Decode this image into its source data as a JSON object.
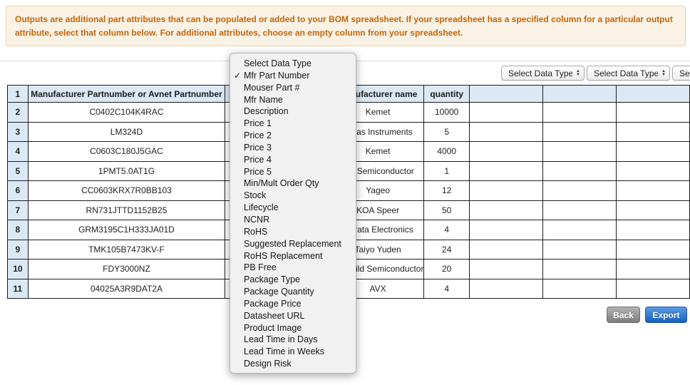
{
  "banner": {
    "text": "Outputs are additional part attributes that can be populated or added to your BOM spreadsheet. If your spreadsheet has a specified column for a particular output attribute, select that column below. For additional attributes, choose an empty column from your spreadsheet."
  },
  "column_selectors": {
    "placeholder": "Select Data Type",
    "visible_count": 3
  },
  "dropdown": {
    "checked_item": "Mfr Part Number",
    "checkmark_glyph": "✓",
    "items": [
      "Select Data Type",
      "Mfr Part Number",
      "Mouser Part #",
      "Mfr Name",
      "Description",
      "Price 1",
      "Price 2",
      "Price 3",
      "Price 4",
      "Price 5",
      "Min/Mult Order Qty",
      "Stock",
      "Lifecycle",
      "NCNR",
      "RoHS",
      "Suggested Replacement",
      "RoHS Replacement",
      "PB Free",
      "Package Type",
      "Package Quantity",
      "Package Price",
      "Datasheet URL",
      "Product Image",
      "Lead Time in Days",
      "Lead Time in Weeks",
      "Design Risk"
    ]
  },
  "table": {
    "header": {
      "row_number": "1",
      "part_number_col": "Manufacturer Partnumber or Avnet Partnumber",
      "manufacturer_col": "Manufacturer name",
      "quantity_col": "quantity"
    },
    "rows": [
      {
        "num": "2",
        "part_number": "C0402C104K4RAC",
        "manufacturer": "Kemet",
        "quantity": "10000"
      },
      {
        "num": "3",
        "part_number": "LM324D",
        "manufacturer": "Texas Instruments",
        "quantity": "5"
      },
      {
        "num": "4",
        "part_number": "C0603C180J5GAC",
        "manufacturer": "Kemet",
        "quantity": "4000"
      },
      {
        "num": "5",
        "part_number": "1PMT5.0AT1G",
        "manufacturer": "ON Semiconductor",
        "quantity": "1"
      },
      {
        "num": "6",
        "part_number": "CC0603KRX7R0BB103",
        "manufacturer": "Yageo",
        "quantity": "12"
      },
      {
        "num": "7",
        "part_number": "RN731JTTD1152B25",
        "manufacturer": "KOA Speer",
        "quantity": "50"
      },
      {
        "num": "8",
        "part_number": "GRM3195C1H333JA01D",
        "manufacturer": "Murata Electronics",
        "quantity": "4"
      },
      {
        "num": "9",
        "part_number": "TMK105B7473KV-F",
        "manufacturer": "Taiyo Yuden",
        "quantity": "24"
      },
      {
        "num": "10",
        "part_number": "FDY3000NZ",
        "manufacturer": "Fairchild Semiconductor",
        "quantity": "20"
      },
      {
        "num": "11",
        "part_number": "04025A3R9DAT2A",
        "manufacturer": "AVX",
        "quantity": "4"
      }
    ]
  },
  "buttons": {
    "back": "Back",
    "export": "Export"
  },
  "colors": {
    "banner_text": "#c2660e",
    "banner_bg": "#faf2e4",
    "banner_border": "#e7d3b0",
    "table_header_bg": "#dbe9f6",
    "table_border": "#1d1d1d",
    "export_button_blue": "#1460c0",
    "back_button_gray": "#7c7c7c",
    "dropdown_bg": "#f1f1f1"
  }
}
